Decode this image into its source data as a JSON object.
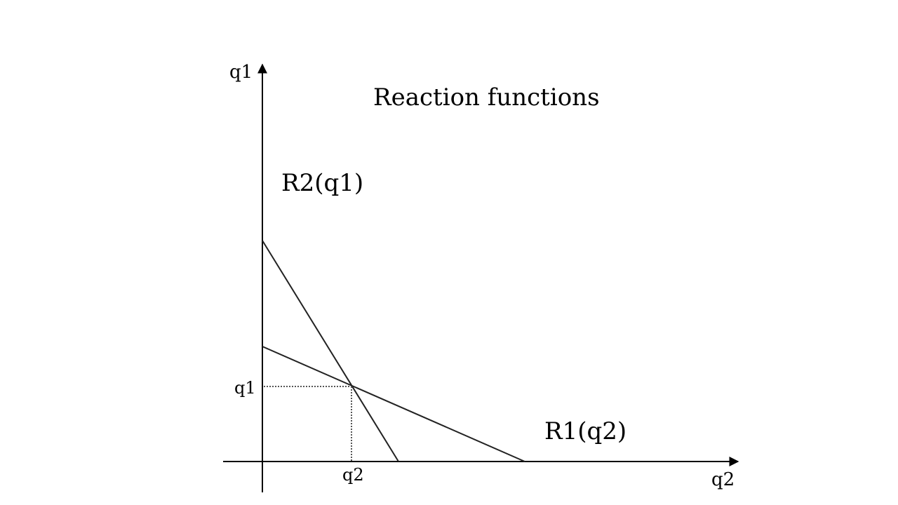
{
  "title": "Reaction functions",
  "axes": {
    "y_label": "q1",
    "x_label": "q2"
  },
  "curves": [
    {
      "name": "R2(q1)"
    },
    {
      "name": "R1(q2)"
    }
  ],
  "equilibrium": {
    "q1_label": "q1",
    "q2_label": "q2"
  },
  "colors": {
    "line": "#000000",
    "dotted": "#555555"
  }
}
